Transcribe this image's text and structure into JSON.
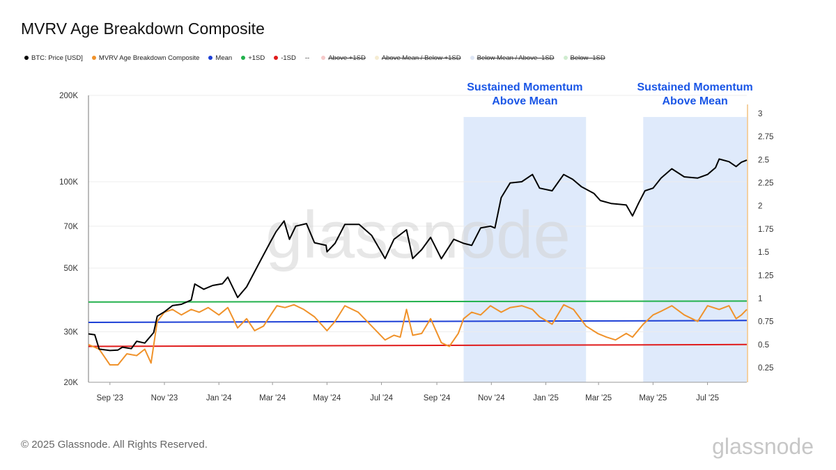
{
  "title": "MVRV Age Breakdown Composite",
  "legend": [
    {
      "label": "BTC: Price [USD]",
      "color": "#000000",
      "struck": false,
      "marker": "dot"
    },
    {
      "label": "MVRV Age Breakdown Composite",
      "color": "#f0922a",
      "struck": false,
      "marker": "dot"
    },
    {
      "label": "Mean",
      "color": "#1c3fd6",
      "struck": false,
      "marker": "dot"
    },
    {
      "label": "+1SD",
      "color": "#22b14c",
      "struck": false,
      "marker": "dot"
    },
    {
      "label": "-1SD",
      "color": "#e01b1b",
      "struck": false,
      "marker": "dot"
    },
    {
      "label": "",
      "color": "#333333",
      "struck": false,
      "marker": "dash"
    },
    {
      "label": "Above +1SD",
      "color": "#f6c9c9",
      "struck": true,
      "marker": "dot"
    },
    {
      "label": "Above Mean / Below +1SD",
      "color": "#f5ecd2",
      "struck": true,
      "marker": "dot"
    },
    {
      "label": "Below Mean / Above -1SD",
      "color": "#dde6f5",
      "struck": true,
      "marker": "dot"
    },
    {
      "label": "Below -1SD",
      "color": "#cfeccf",
      "struck": true,
      "marker": "dot"
    }
  ],
  "footer": "© 2025 Glassnode. All Rights Reserved.",
  "watermark": "glassnode",
  "colors": {
    "price": "#000000",
    "composite": "#f0922a",
    "mean": "#1c3fd6",
    "plus1sd": "#22b14c",
    "minus1sd": "#e01b1b",
    "highlight": "#dfeafb",
    "annotation": "#1a56e6"
  },
  "chart_data": {
    "type": "line",
    "x_ticks": [
      "Sep '23",
      "Nov '23",
      "Jan '24",
      "Mar '24",
      "May '24",
      "Jul '24",
      "Sep '24",
      "Nov '24",
      "Jan '25",
      "Mar '25",
      "May '25",
      "Jul '25"
    ],
    "x_range": [
      "2023-08-08",
      "2025-08-14"
    ],
    "left_axis": {
      "scale": "log",
      "ticks": [
        "20K",
        "30K",
        "50K",
        "70K",
        "100K",
        "200K"
      ],
      "tick_values": [
        20000,
        30000,
        50000,
        70000,
        100000,
        200000
      ],
      "range": [
        20000,
        200000
      ]
    },
    "right_axis": {
      "scale": "linear",
      "ticks": [
        "0.25",
        "0.5",
        "0.75",
        "1",
        "1.25",
        "1.5",
        "1.75",
        "2",
        "2.25",
        "2.5",
        "2.75",
        "3"
      ],
      "tick_values": [
        0.25,
        0.5,
        0.75,
        1,
        1.25,
        1.5,
        1.75,
        2,
        2.25,
        2.5,
        2.75,
        3
      ],
      "range": [
        0.1,
        3.1
      ]
    },
    "grid": true,
    "annotations": [
      {
        "lines": [
          "Sustained Momentum",
          "Above Mean"
        ],
        "x_start": "2024-10-01",
        "x_end": "2025-02-15"
      },
      {
        "lines": [
          "Sustained Momentum",
          "Above Mean"
        ],
        "x_start": "2025-04-20",
        "x_end": "2025-08-14"
      }
    ],
    "series": [
      {
        "name": "BTC: Price [USD]",
        "axis": "left",
        "points": [
          [
            "2023-08-08",
            29500
          ],
          [
            "2023-08-15",
            29300
          ],
          [
            "2023-08-20",
            26100
          ],
          [
            "2023-09-01",
            25800
          ],
          [
            "2023-09-10",
            25900
          ],
          [
            "2023-09-15",
            26500
          ],
          [
            "2023-09-25",
            26200
          ],
          [
            "2023-10-01",
            27800
          ],
          [
            "2023-10-10",
            27400
          ],
          [
            "2023-10-20",
            29800
          ],
          [
            "2023-10-24",
            34000
          ],
          [
            "2023-11-01",
            35200
          ],
          [
            "2023-11-10",
            37000
          ],
          [
            "2023-11-20",
            37400
          ],
          [
            "2023-12-01",
            38700
          ],
          [
            "2023-12-05",
            44000
          ],
          [
            "2023-12-15",
            42200
          ],
          [
            "2023-12-25",
            43500
          ],
          [
            "2024-01-05",
            44100
          ],
          [
            "2024-01-11",
            46500
          ],
          [
            "2024-01-22",
            39500
          ],
          [
            "2024-02-01",
            43000
          ],
          [
            "2024-02-15",
            52000
          ],
          [
            "2024-02-28",
            62000
          ],
          [
            "2024-03-05",
            67000
          ],
          [
            "2024-03-14",
            73000
          ],
          [
            "2024-03-20",
            63000
          ],
          [
            "2024-03-27",
            70000
          ],
          [
            "2024-04-08",
            71500
          ],
          [
            "2024-04-17",
            61300
          ],
          [
            "2024-04-30",
            60000
          ],
          [
            "2024-05-01",
            57000
          ],
          [
            "2024-05-10",
            61000
          ],
          [
            "2024-05-21",
            71000
          ],
          [
            "2024-06-06",
            71000
          ],
          [
            "2024-06-20",
            65000
          ],
          [
            "2024-07-05",
            54000
          ],
          [
            "2024-07-15",
            63000
          ],
          [
            "2024-07-29",
            68000
          ],
          [
            "2024-08-05",
            54000
          ],
          [
            "2024-08-15",
            58000
          ],
          [
            "2024-08-25",
            64000
          ],
          [
            "2024-09-06",
            53900
          ],
          [
            "2024-09-20",
            63000
          ],
          [
            "2024-10-01",
            61000
          ],
          [
            "2024-10-10",
            60000
          ],
          [
            "2024-10-20",
            69000
          ],
          [
            "2024-10-31",
            70000
          ],
          [
            "2024-11-05",
            69000
          ],
          [
            "2024-11-12",
            88000
          ],
          [
            "2024-11-22",
            99000
          ],
          [
            "2024-12-05",
            100000
          ],
          [
            "2024-12-17",
            106000
          ],
          [
            "2024-12-25",
            95000
          ],
          [
            "2025-01-08",
            93000
          ],
          [
            "2025-01-21",
            106000
          ],
          [
            "2025-01-31",
            102000
          ],
          [
            "2025-02-10",
            96000
          ],
          [
            "2025-02-24",
            91000
          ],
          [
            "2025-03-03",
            86000
          ],
          [
            "2025-03-15",
            84000
          ],
          [
            "2025-04-01",
            83000
          ],
          [
            "2025-04-08",
            76000
          ],
          [
            "2025-04-15",
            84500
          ],
          [
            "2025-04-22",
            93000
          ],
          [
            "2025-05-01",
            95000
          ],
          [
            "2025-05-10",
            103000
          ],
          [
            "2025-05-22",
            111000
          ],
          [
            "2025-06-05",
            104000
          ],
          [
            "2025-06-20",
            103000
          ],
          [
            "2025-07-01",
            106000
          ],
          [
            "2025-07-10",
            112000
          ],
          [
            "2025-07-14",
            120000
          ],
          [
            "2025-07-25",
            117500
          ],
          [
            "2025-08-02",
            113000
          ],
          [
            "2025-08-08",
            117000
          ],
          [
            "2025-08-14",
            119000
          ]
        ]
      },
      {
        "name": "MVRV Age Breakdown Composite",
        "axis": "right",
        "points": [
          [
            "2023-08-08",
            0.5
          ],
          [
            "2023-08-20",
            0.45
          ],
          [
            "2023-09-01",
            0.28
          ],
          [
            "2023-09-10",
            0.28
          ],
          [
            "2023-09-20",
            0.4
          ],
          [
            "2023-10-01",
            0.38
          ],
          [
            "2023-10-10",
            0.45
          ],
          [
            "2023-10-17",
            0.3
          ],
          [
            "2023-10-24",
            0.75
          ],
          [
            "2023-11-01",
            0.85
          ],
          [
            "2023-11-10",
            0.88
          ],
          [
            "2023-11-20",
            0.82
          ],
          [
            "2023-12-01",
            0.88
          ],
          [
            "2023-12-10",
            0.85
          ],
          [
            "2023-12-20",
            0.9
          ],
          [
            "2024-01-01",
            0.82
          ],
          [
            "2024-01-11",
            0.9
          ],
          [
            "2024-01-22",
            0.68
          ],
          [
            "2024-02-01",
            0.78
          ],
          [
            "2024-02-10",
            0.65
          ],
          [
            "2024-02-20",
            0.7
          ],
          [
            "2024-02-28",
            0.82
          ],
          [
            "2024-03-06",
            0.92
          ],
          [
            "2024-03-15",
            0.9
          ],
          [
            "2024-03-25",
            0.93
          ],
          [
            "2024-04-05",
            0.88
          ],
          [
            "2024-04-17",
            0.8
          ],
          [
            "2024-05-01",
            0.65
          ],
          [
            "2024-05-10",
            0.75
          ],
          [
            "2024-05-21",
            0.92
          ],
          [
            "2024-06-05",
            0.85
          ],
          [
            "2024-06-20",
            0.7
          ],
          [
            "2024-07-05",
            0.55
          ],
          [
            "2024-07-15",
            0.6
          ],
          [
            "2024-07-22",
            0.58
          ],
          [
            "2024-07-29",
            0.88
          ],
          [
            "2024-08-05",
            0.6
          ],
          [
            "2024-08-15",
            0.62
          ],
          [
            "2024-08-25",
            0.78
          ],
          [
            "2024-09-06",
            0.52
          ],
          [
            "2024-09-15",
            0.48
          ],
          [
            "2024-09-25",
            0.62
          ],
          [
            "2024-10-01",
            0.78
          ],
          [
            "2024-10-10",
            0.85
          ],
          [
            "2024-10-20",
            0.82
          ],
          [
            "2024-10-31",
            0.92
          ],
          [
            "2024-11-12",
            0.85
          ],
          [
            "2024-11-22",
            0.9
          ],
          [
            "2024-12-05",
            0.92
          ],
          [
            "2024-12-17",
            0.88
          ],
          [
            "2024-12-25",
            0.8
          ],
          [
            "2025-01-08",
            0.72
          ],
          [
            "2025-01-21",
            0.93
          ],
          [
            "2025-02-01",
            0.88
          ],
          [
            "2025-02-15",
            0.7
          ],
          [
            "2025-02-28",
            0.62
          ],
          [
            "2025-03-10",
            0.58
          ],
          [
            "2025-03-20",
            0.55
          ],
          [
            "2025-04-01",
            0.62
          ],
          [
            "2025-04-08",
            0.58
          ],
          [
            "2025-04-20",
            0.72
          ],
          [
            "2025-05-01",
            0.82
          ],
          [
            "2025-05-10",
            0.86
          ],
          [
            "2025-05-22",
            0.92
          ],
          [
            "2025-06-05",
            0.82
          ],
          [
            "2025-06-20",
            0.75
          ],
          [
            "2025-07-01",
            0.92
          ],
          [
            "2025-07-14",
            0.88
          ],
          [
            "2025-07-25",
            0.92
          ],
          [
            "2025-08-02",
            0.78
          ],
          [
            "2025-08-08",
            0.82
          ],
          [
            "2025-08-14",
            0.88
          ]
        ]
      },
      {
        "name": "Mean",
        "axis": "right",
        "points": [
          [
            "2023-08-08",
            0.74
          ],
          [
            "2025-08-14",
            0.76
          ]
        ]
      },
      {
        "name": "+1SD",
        "axis": "right",
        "points": [
          [
            "2023-08-08",
            0.96
          ],
          [
            "2025-08-14",
            0.97
          ]
        ]
      },
      {
        "name": "-1SD",
        "axis": "right",
        "points": [
          [
            "2023-08-08",
            0.48
          ],
          [
            "2025-08-14",
            0.5
          ]
        ]
      }
    ]
  }
}
